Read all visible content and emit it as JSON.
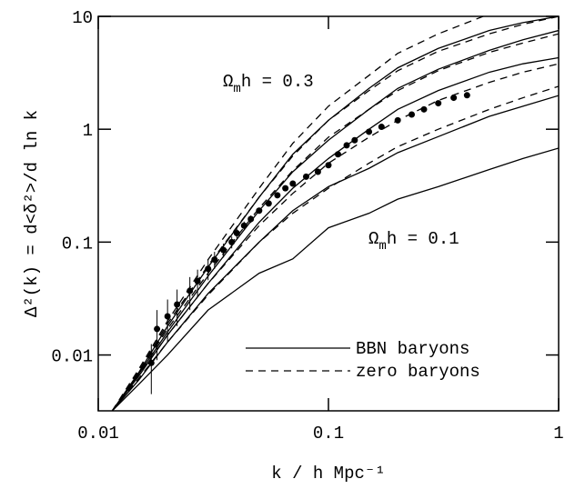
{
  "chart_data": {
    "type": "line",
    "x_label": "k / h Mpc⁻¹",
    "y_label": "Δ²(k) = d<δ²>/d ln k",
    "xscale": "log",
    "yscale": "log",
    "xlim": [
      0.01,
      1
    ],
    "ylim": [
      0.0032,
      10
    ],
    "xticks": [
      0.01,
      0.1,
      1
    ],
    "yticks": [
      0.01,
      0.1,
      1,
      10
    ],
    "x": [
      0.0115,
      0.015,
      0.02,
      0.03,
      0.05,
      0.07,
      0.1,
      0.15,
      0.2,
      0.3,
      0.5,
      0.7,
      1
    ],
    "series": [
      {
        "style": "solid",
        "color": "#000",
        "values": [
          0.0032,
          0.007,
          0.018,
          0.06,
          0.25,
          0.6,
          1.2,
          2.3,
          3.5,
          5.2,
          7.5,
          8.8,
          10
        ]
      },
      {
        "style": "solid",
        "color": "#000",
        "values": [
          0.0032,
          0.0068,
          0.016,
          0.05,
          0.19,
          0.42,
          0.8,
          1.5,
          2.3,
          3.4,
          5,
          6.2,
          7.5
        ]
      },
      {
        "style": "solid",
        "color": "#000",
        "values": [
          0.0032,
          0.0065,
          0.015,
          0.043,
          0.15,
          0.3,
          0.55,
          1.0,
          1.5,
          2.2,
          3.2,
          3.8,
          4.3
        ]
      },
      {
        "style": "solid",
        "color": "#000",
        "values": [
          0.0032,
          0.006,
          0.013,
          0.035,
          0.1,
          0.19,
          0.31,
          0.45,
          0.62,
          0.86,
          1.3,
          1.6,
          1.99
        ]
      },
      {
        "style": "solid",
        "color": "#000",
        "values": [
          0.0032,
          0.0055,
          0.01,
          0.025,
          0.053,
          0.071,
          0.134,
          0.18,
          0.24,
          0.31,
          0.44,
          0.55,
          0.68
        ]
      },
      {
        "style": "dashed",
        "color": "#000",
        "values": [
          0.0032,
          0.0075,
          0.02,
          0.07,
          0.3,
          0.75,
          1.6,
          3,
          4.7,
          7,
          10.5,
          12,
          13
        ]
      },
      {
        "style": "dashed",
        "color": "#000",
        "values": [
          0.0032,
          0.0072,
          0.019,
          0.062,
          0.25,
          0.58,
          1.2,
          2.2,
          3.3,
          4.9,
          7,
          8.5,
          10
        ]
      },
      {
        "style": "dashed",
        "color": "#000",
        "values": [
          0.0032,
          0.007,
          0.017,
          0.053,
          0.2,
          0.43,
          0.85,
          1.5,
          2.2,
          3.3,
          4.8,
          5.8,
          7
        ]
      },
      {
        "style": "dashed",
        "color": "#000",
        "values": [
          0.0032,
          0.0066,
          0.015,
          0.043,
          0.14,
          0.27,
          0.5,
          0.85,
          1.2,
          1.8,
          2.6,
          3.2,
          3.8
        ]
      },
      {
        "style": "dashed",
        "color": "#000",
        "values": [
          0.0032,
          0.0062,
          0.013,
          0.034,
          0.1,
          0.18,
          0.3,
          0.5,
          0.7,
          1.0,
          1.5,
          1.9,
          2.4
        ]
      }
    ],
    "points": {
      "color": "#000",
      "x": [
        0.017,
        0.018,
        0.02,
        0.022,
        0.025,
        0.027,
        0.03,
        0.032,
        0.035,
        0.038,
        0.04,
        0.043,
        0.046,
        0.05,
        0.055,
        0.06,
        0.065,
        0.07,
        0.08,
        0.09,
        0.1,
        0.11,
        0.12,
        0.13,
        0.15,
        0.17,
        0.2,
        0.23,
        0.26,
        0.3,
        0.35,
        0.4
      ],
      "values": [
        0.0085,
        0.017,
        0.022,
        0.028,
        0.037,
        0.045,
        0.058,
        0.07,
        0.085,
        0.1,
        0.12,
        0.14,
        0.16,
        0.19,
        0.22,
        0.26,
        0.3,
        0.33,
        0.38,
        0.42,
        0.48,
        0.6,
        0.72,
        0.8,
        0.95,
        1.05,
        1.2,
        1.35,
        1.5,
        1.7,
        1.9,
        2.0
      ],
      "errors": [
        0.004,
        0.008,
        0.009,
        0.01,
        0.012,
        0.012,
        0.012,
        0.012,
        0.012,
        0.012,
        0.012,
        0.012,
        0.012,
        0.012,
        0.012,
        0.013,
        0.014,
        0.015,
        0.015,
        0.015,
        0.02,
        0.02,
        0.02,
        0.02,
        0.02,
        0.02,
        0.03,
        0.03,
        0.03,
        0.03,
        0.04,
        0.05
      ]
    },
    "legend": [
      {
        "label": "BBN baryons",
        "style": "solid"
      },
      {
        "label": "zero baryons",
        "style": "dashed"
      }
    ],
    "annotations": [
      {
        "symbol": "Ω",
        "sub": "m",
        "rest": "h = 0.3"
      },
      {
        "symbol": "Ω",
        "sub": "m",
        "rest": "h = 0.1"
      }
    ]
  }
}
